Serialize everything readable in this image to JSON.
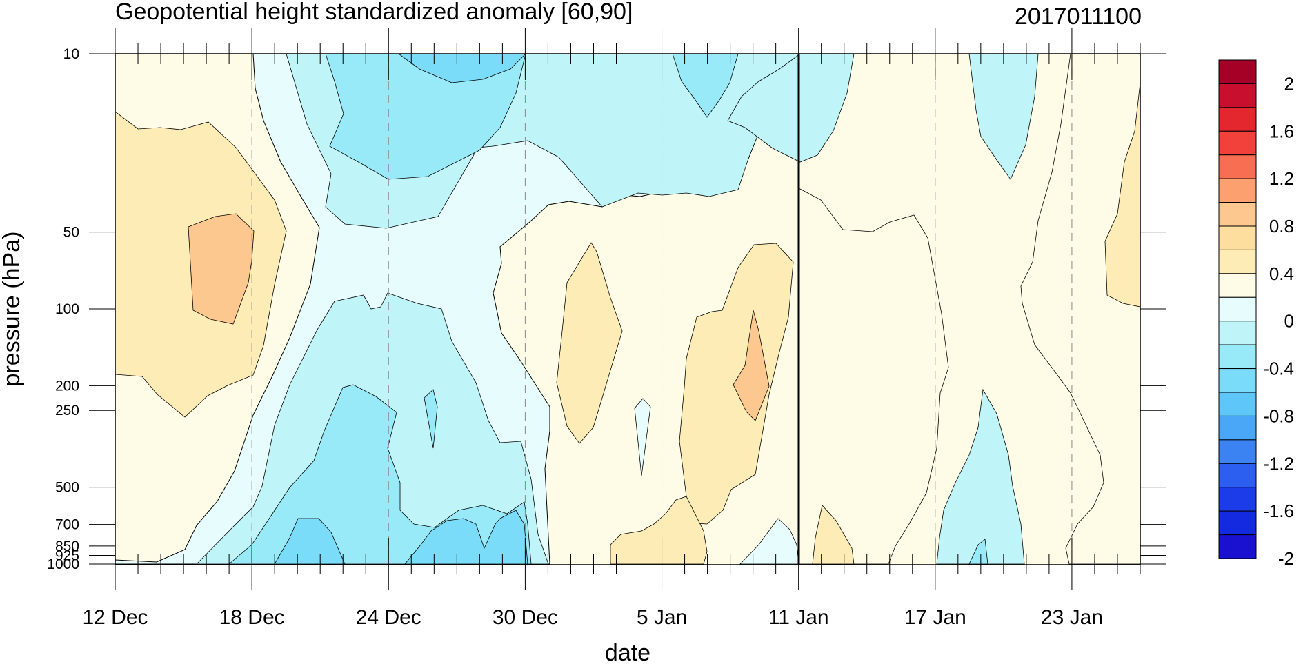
{
  "chart_data": {
    "type": "heatmap",
    "title": "Geopotential height standardized anomaly [60,90]",
    "subtitle": "2017011100",
    "xlabel": "date",
    "ylabel": "pressure (hPa)",
    "x_tick_labels": [
      "12 Dec",
      "18 Dec",
      "24 Dec",
      "30 Dec",
      "5 Jan",
      "11 Jan",
      "17 Jan",
      "23 Jan"
    ],
    "x_tick_days": [
      0,
      6,
      12,
      18,
      24,
      30,
      36,
      42
    ],
    "x_range_days": [
      0,
      45
    ],
    "y_ticks": [
      10,
      50,
      100,
      200,
      250,
      500,
      700,
      850,
      925,
      1000
    ],
    "y_tick_labels": [
      "10",
      "50",
      "100",
      "200",
      "250",
      "500",
      "700",
      "850",
      "925",
      "1000"
    ],
    "y_range": [
      10,
      1000
    ],
    "y_scale": "log",
    "y_inverted": true,
    "forecast_start_day": 30,
    "colorbar": {
      "labels": [
        "2",
        "1.6",
        "1.2",
        "0.8",
        "0.4",
        "0",
        "-0.4",
        "-0.8",
        "-1.2",
        "-1.6",
        "-2"
      ],
      "colors": [
        "#a50026",
        "#c8102e",
        "#e4262f",
        "#f2403a",
        "#f76e52",
        "#fba06e",
        "#fcc890",
        "#fdde9e",
        "#fdecb5",
        "#fefbe6",
        "#e6fcfd",
        "#bff4f9",
        "#98eaf9",
        "#7adcf9",
        "#5ec6f8",
        "#4aa6f6",
        "#3b82f3",
        "#2c5ef0",
        "#1d3ce9",
        "#142ae0",
        "#1a10d0"
      ]
    },
    "levels": [
      -2,
      -1.8,
      -1.6,
      -1.4,
      -1.2,
      -1,
      -0.8,
      -0.6,
      -0.4,
      -0.2,
      0,
      0.2,
      0.4,
      0.6,
      0.8,
      1,
      1.2,
      1.4,
      1.6,
      1.8,
      2
    ]
  }
}
